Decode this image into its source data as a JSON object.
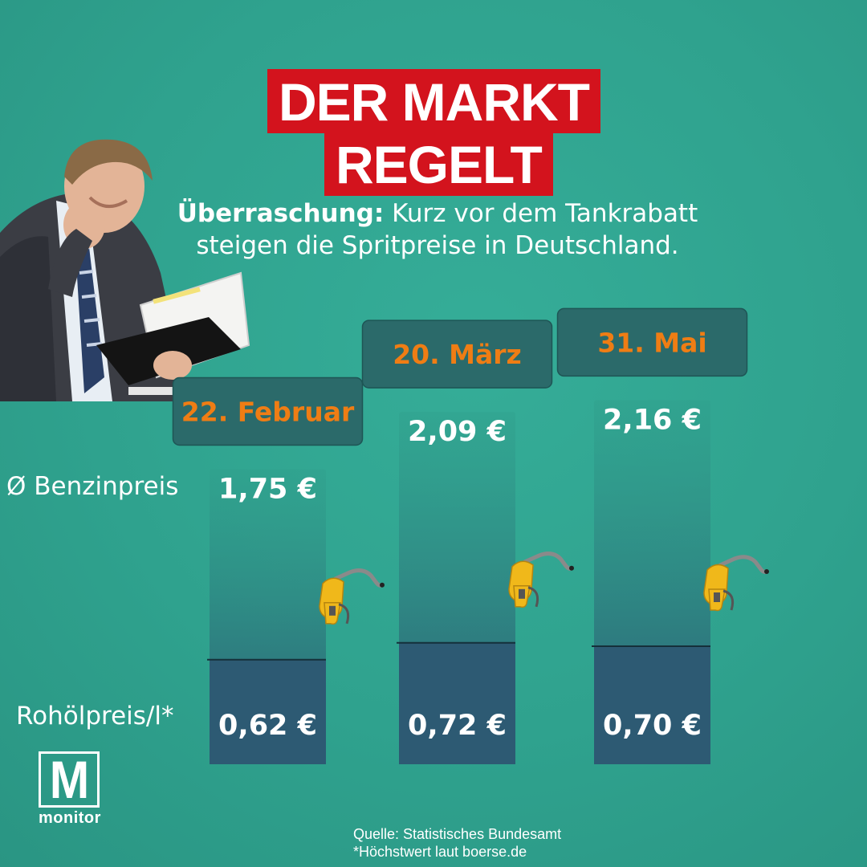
{
  "headline": {
    "line1": "DER MARKT",
    "line2": "REGELT"
  },
  "subtitle": {
    "bold": "Überraschung:",
    "text": " Kurz vor dem Tankrabatt steigen die Spritpreise in Deutschland."
  },
  "row_labels": {
    "benzin": "Ø Benzinpreis",
    "rohoel": "Rohölpreis/l*"
  },
  "colors": {
    "background": "#30a38f",
    "headline_bg": "#d3131d",
    "date_text": "#ef7d14",
    "bar_dark": "#2d5a73",
    "box_bg": "#2b6a6a"
  },
  "chart_data": {
    "type": "bar",
    "categories": [
      "22. Februar",
      "20. März",
      "31. Mai"
    ],
    "series": [
      {
        "name": "Ø Benzinpreis",
        "values": [
          1.75,
          2.09,
          2.16
        ],
        "labels": [
          "1,75 €",
          "2,09 €",
          "2,16 €"
        ]
      },
      {
        "name": "Rohölpreis/l*",
        "values": [
          0.62,
          0.72,
          0.7
        ],
        "labels": [
          "0,62 €",
          "0,72 €",
          "0,70 €"
        ]
      }
    ],
    "unit": "€",
    "stacked": true
  },
  "icons": {
    "pump": "fuel-nozzle-icon",
    "person": "photo-person"
  },
  "logo": {
    "letter": "M",
    "text": "monitor"
  },
  "source": {
    "line1": "Quelle: Statistisches Bundesamt",
    "line2": "*Höchstwert laut boerse.de"
  }
}
